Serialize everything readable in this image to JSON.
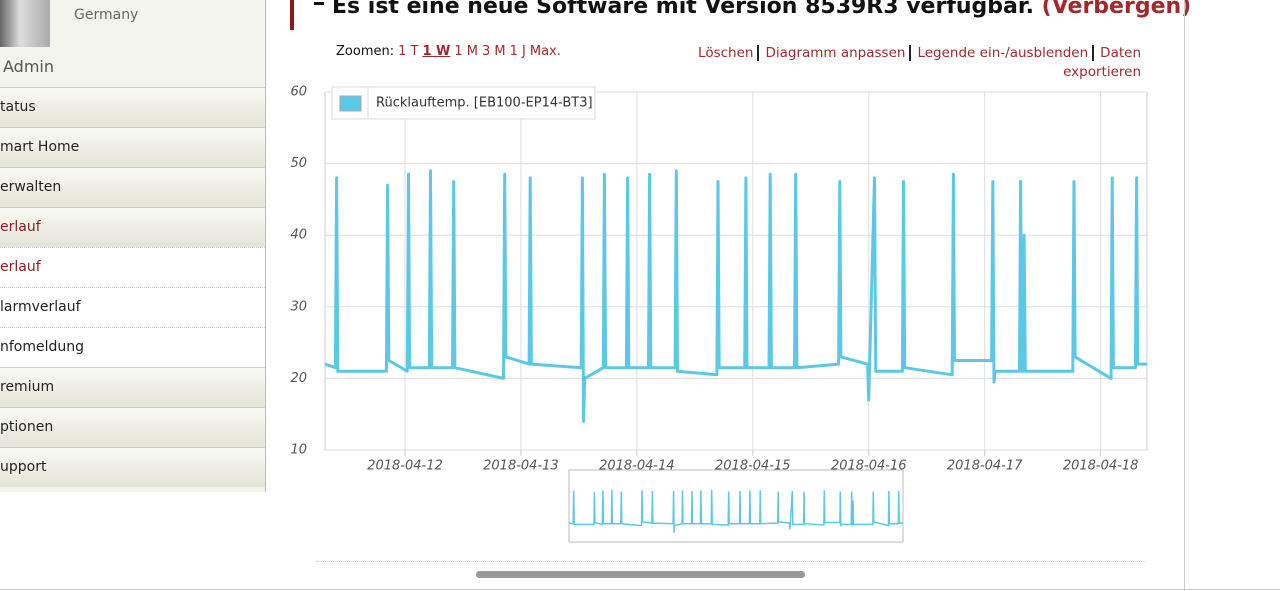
{
  "sidebar": {
    "location": "Germany",
    "user": "Admin",
    "menu": [
      "tatus",
      "mart Home",
      "erwalten",
      "erlauf",
      "erlauf",
      "larmverlauf",
      "nfomeldung",
      "remium",
      "ptionen",
      "upport"
    ]
  },
  "notice": {
    "text": "Es ist eine neue Software mit Version 8539R3 verfügbar.",
    "link": "(Verbergen)"
  },
  "toolbar": {
    "zoom_label": "Zoomen:",
    "zoom": [
      "1 T",
      "1 W",
      "1 M",
      "3 M",
      "1 J",
      "Max."
    ],
    "actions": [
      "Löschen",
      "Diagramm anpassen",
      "Legende ein-/ausblenden",
      "Daten exportieren"
    ]
  },
  "chart_data": {
    "type": "line",
    "x": [
      11.31,
      11.4,
      11.41,
      11.42,
      11.84,
      11.85,
      11.86,
      12.02,
      12.03,
      12.04,
      12.21,
      12.22,
      12.23,
      12.41,
      12.42,
      12.43,
      12.85,
      12.86,
      12.87,
      13.07,
      13.08,
      13.09,
      13.52,
      13.53,
      13.54,
      13.55,
      13.71,
      13.72,
      13.73,
      13.91,
      13.92,
      13.93,
      14.1,
      14.11,
      14.12,
      14.33,
      14.34,
      14.35,
      14.69,
      14.7,
      14.71,
      14.93,
      14.94,
      14.95,
      15.14,
      15.15,
      15.16,
      15.36,
      15.37,
      15.38,
      15.74,
      15.75,
      15.76,
      15.99,
      16.0,
      16.05,
      16.06,
      16.29,
      16.3,
      16.31,
      16.72,
      16.73,
      16.74,
      17.06,
      17.07,
      17.08,
      17.09,
      17.3,
      17.31,
      17.32,
      17.33,
      17.34,
      17.35,
      17.76,
      17.77,
      17.78,
      18.09,
      18.1,
      18.11,
      18.3,
      18.31,
      18.32,
      18.4
    ],
    "series": [
      {
        "name": "Rücklauftemp. [EB100-EP14-BT3]",
        "color": "#5bc8e8",
        "values": [
          22,
          21.5,
          48,
          21,
          21,
          47,
          22.5,
          21,
          48.5,
          21.5,
          21.5,
          49,
          21.5,
          21.5,
          47.5,
          21.5,
          20,
          48.5,
          23,
          22,
          48,
          22,
          21.5,
          48,
          14,
          20,
          21.5,
          48.5,
          21.5,
          21.5,
          48,
          21.5,
          21.5,
          48.5,
          21.5,
          21.5,
          49,
          21,
          20.5,
          47.5,
          21.5,
          21.5,
          48,
          21.5,
          21.5,
          48.5,
          21.5,
          21.5,
          48.5,
          21.5,
          22,
          47.5,
          23,
          22,
          17,
          48,
          21,
          21,
          47.5,
          21.5,
          20.5,
          48.5,
          22.5,
          22.5,
          47.5,
          19.5,
          21,
          21,
          47.5,
          21,
          21,
          40,
          21,
          21,
          47.5,
          23,
          20,
          48,
          21.5,
          21.5,
          48,
          22,
          22
        ]
      }
    ],
    "xlim": [
      11.31,
      18.4
    ],
    "xticks": [
      {
        "value": 12,
        "label": "2018-04-12"
      },
      {
        "value": 13,
        "label": "2018-04-13"
      },
      {
        "value": 14,
        "label": "2018-04-14"
      },
      {
        "value": 15,
        "label": "2018-04-15"
      },
      {
        "value": 16,
        "label": "2018-04-16"
      },
      {
        "value": 17,
        "label": "2018-04-17"
      },
      {
        "value": 18,
        "label": "2018-04-18"
      }
    ],
    "ylim": [
      10,
      60
    ],
    "yticks": [
      10,
      20,
      30,
      40,
      50,
      60
    ],
    "grid": true
  }
}
